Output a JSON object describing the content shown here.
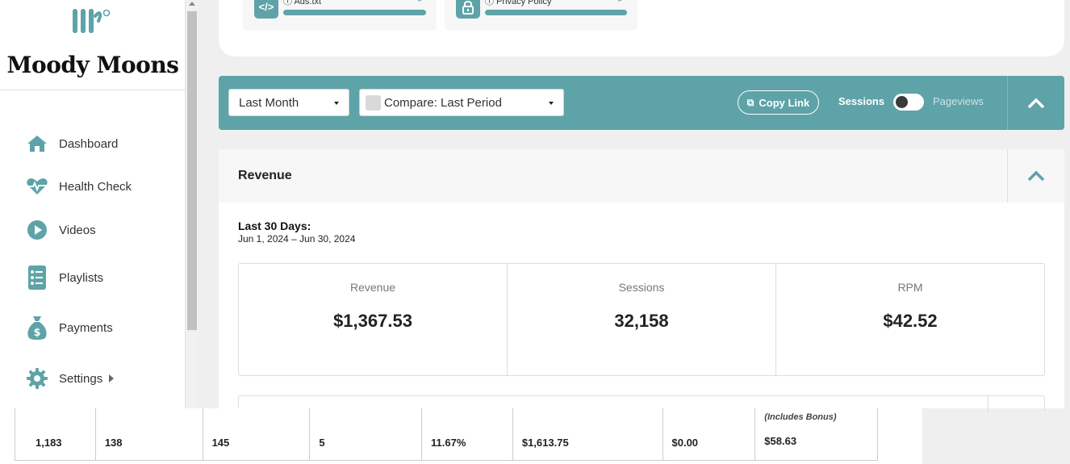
{
  "sidebar": {
    "brand": "Moody Moons",
    "items": [
      {
        "label": "Dashboard",
        "icon": "home-icon"
      },
      {
        "label": "Health Check",
        "icon": "heartbeat-icon"
      },
      {
        "label": "Videos",
        "icon": "play-circle-icon"
      },
      {
        "label": "Playlists",
        "icon": "list-icon"
      },
      {
        "label": "Payments",
        "icon": "money-bag-icon"
      },
      {
        "label": "Settings",
        "icon": "gear-icon"
      }
    ]
  },
  "top_cards": [
    {
      "label": "Ads.txt",
      "icon": "code-icon"
    },
    {
      "label": "Privacy Policy",
      "icon": "lock-icon"
    }
  ],
  "filters": {
    "period": "Last Month",
    "compare": "Compare: Last Period",
    "copy_link": "Copy Link",
    "toggle_left": "Sessions",
    "toggle_right": "Pageviews"
  },
  "revenue": {
    "title": "Revenue",
    "period_title": "Last 30 Days:",
    "period_range": "Jun 1, 2024 – Jun 30, 2024",
    "stats": [
      {
        "label": "Revenue",
        "value": "$1,367.53"
      },
      {
        "label": "Sessions",
        "value": "32,158"
      },
      {
        "label": "RPM",
        "value": "$42.52"
      }
    ]
  },
  "bottom_table": {
    "note": "(Includes Bonus)",
    "cells": [
      "1,183",
      "138",
      "145",
      "5",
      "11.67%",
      "$1,613.75",
      "$0.00",
      "$58.63"
    ]
  },
  "colors": {
    "accent": "#5ea3a8",
    "sidebar_bg": "#ffffff",
    "page_bg": "#efefef"
  }
}
